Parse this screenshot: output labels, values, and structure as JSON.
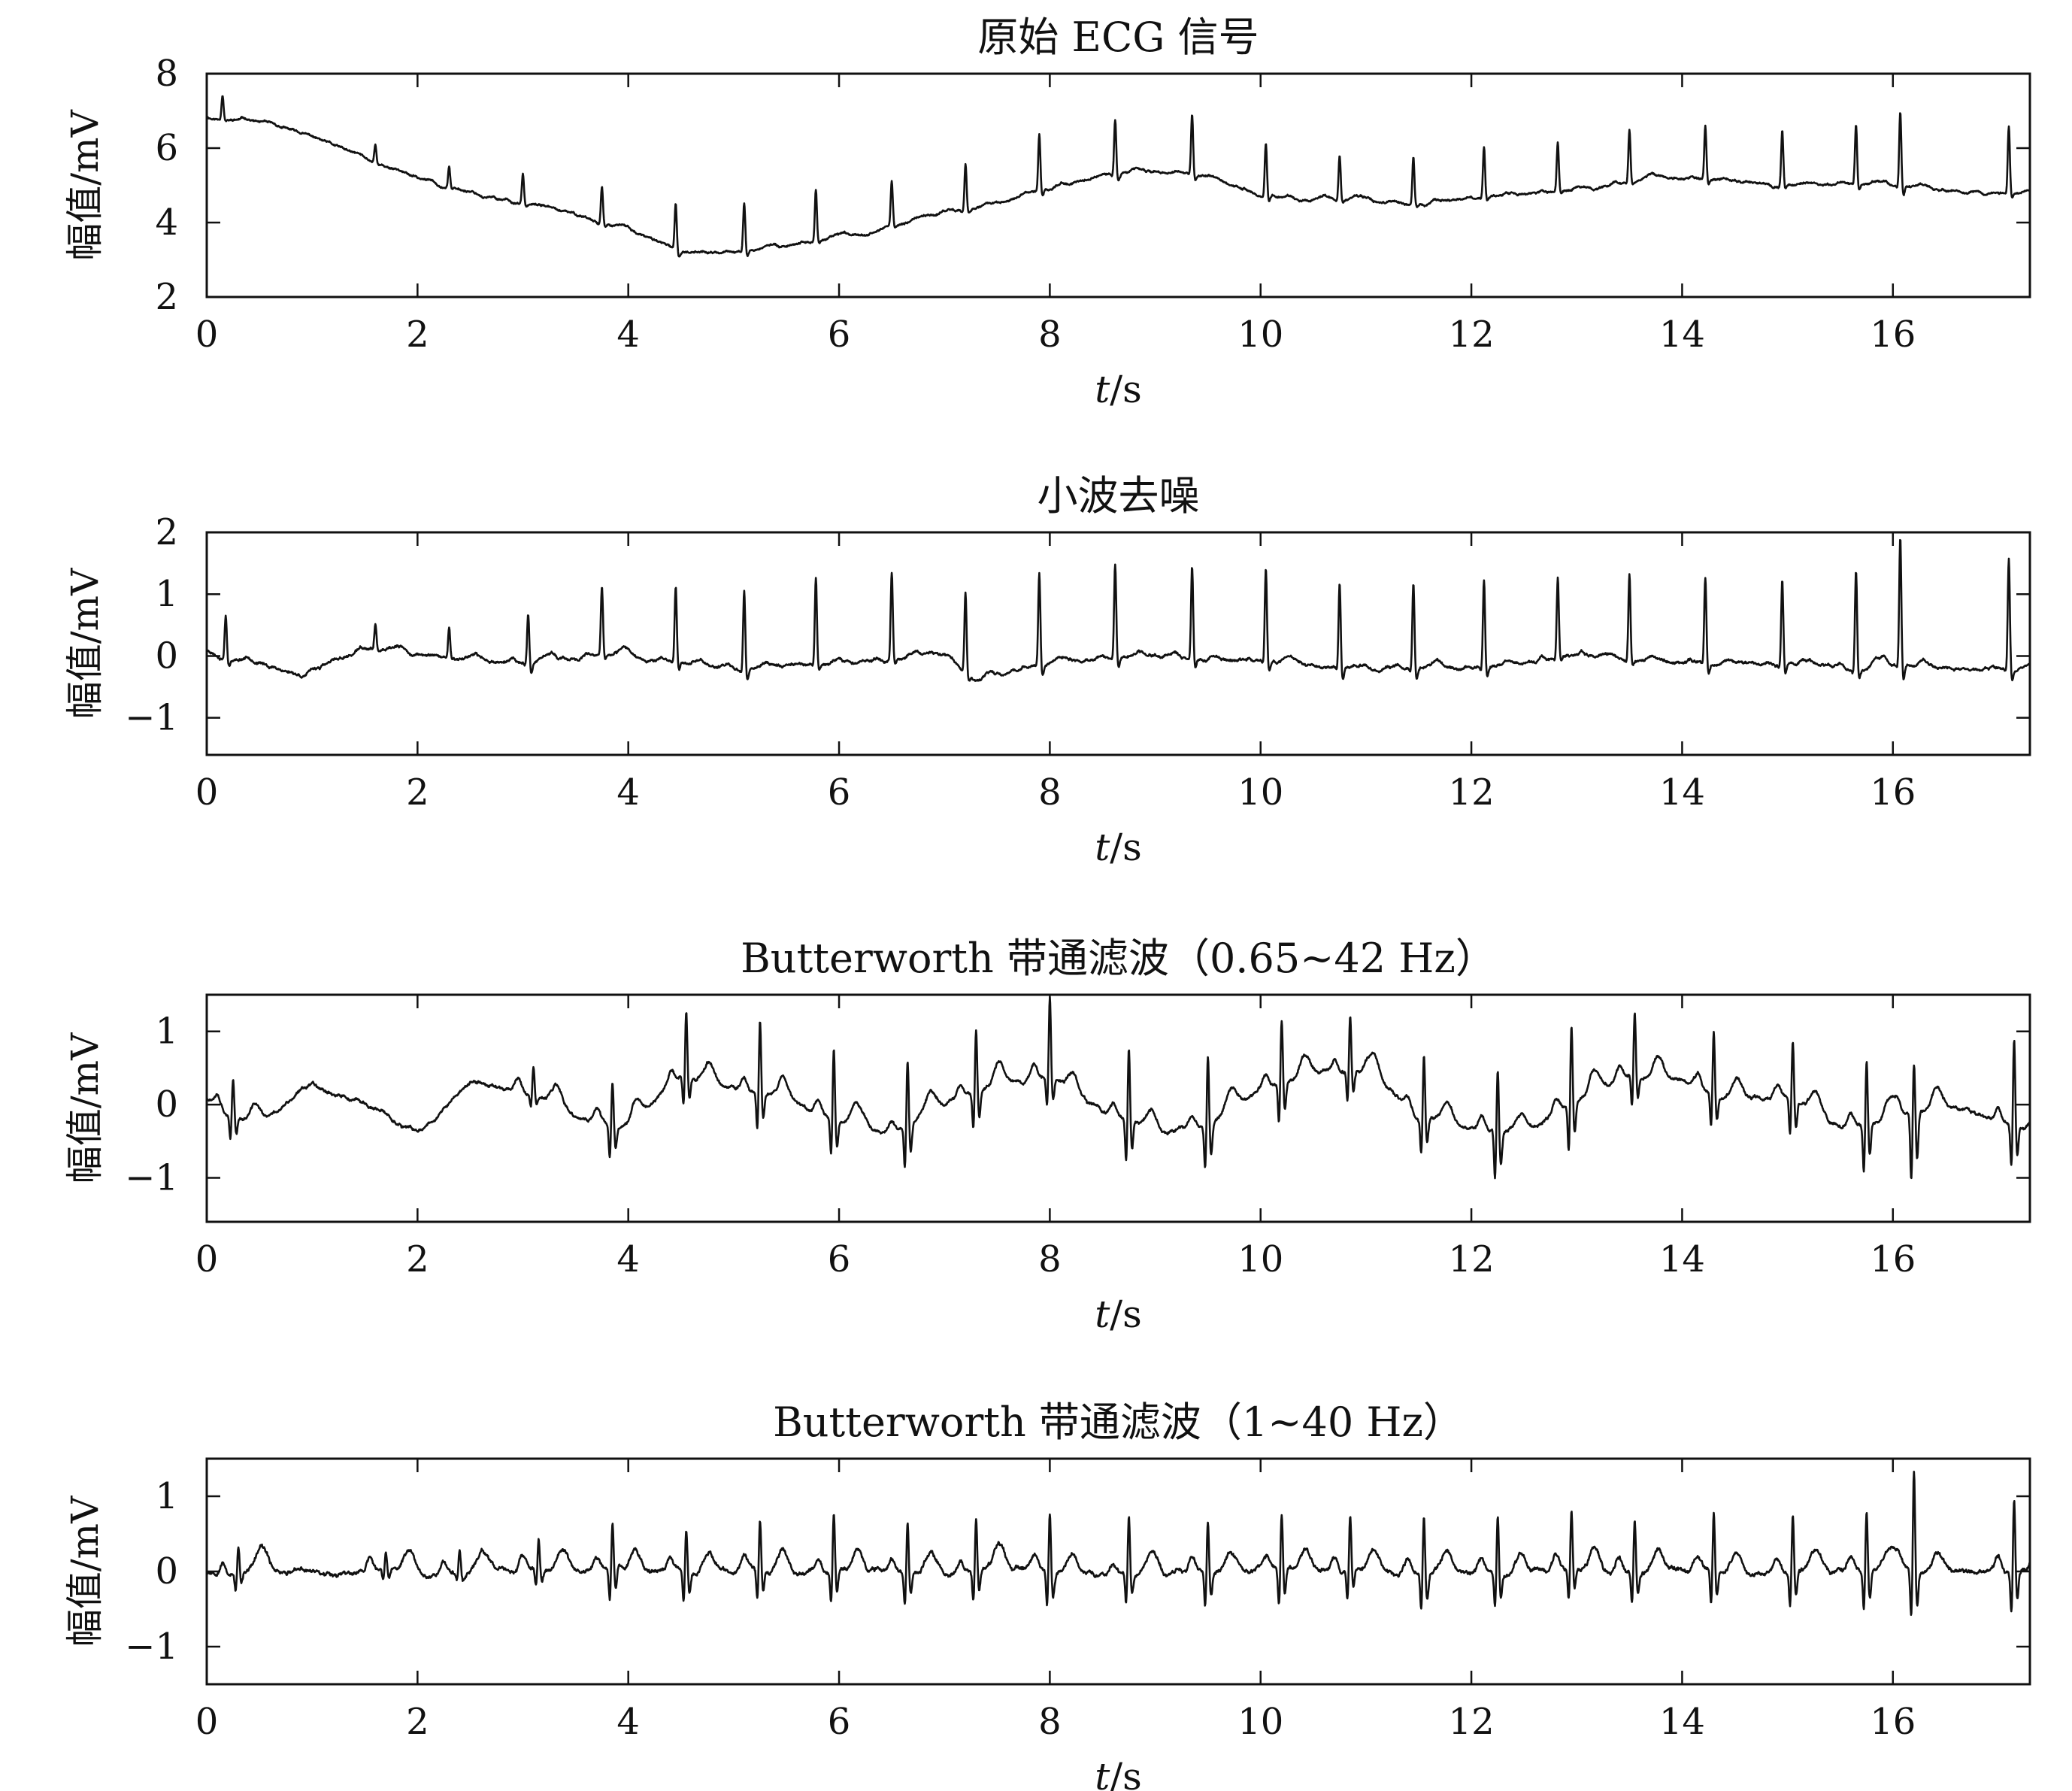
{
  "chart_data": [
    {
      "type": "line",
      "title": "原始 ECG 信号",
      "xlabel_italic": "t",
      "xlabel_rest": "/s",
      "ylabel": "幅值/mV",
      "xlim": [
        0,
        17.3
      ],
      "ylim": [
        2,
        8
      ],
      "xticks": [
        0,
        2,
        4,
        6,
        8,
        10,
        12,
        14,
        16
      ],
      "yticks": [
        2,
        4,
        6,
        8
      ],
      "ytick_labels": [
        "2",
        "4",
        "6",
        "8"
      ],
      "signal": {
        "baseline": [
          [
            0,
            6.8
          ],
          [
            0.5,
            6.7
          ],
          [
            1.0,
            6.3
          ],
          [
            1.5,
            5.7
          ],
          [
            2.0,
            5.2
          ],
          [
            2.5,
            4.8
          ],
          [
            3.0,
            4.5
          ],
          [
            3.5,
            4.2
          ],
          [
            4.0,
            3.8
          ],
          [
            4.5,
            3.2
          ],
          [
            5.0,
            3.2
          ],
          [
            5.5,
            3.4
          ],
          [
            6.0,
            3.6
          ],
          [
            6.5,
            3.9
          ],
          [
            7.0,
            4.3
          ],
          [
            7.5,
            4.5
          ],
          [
            8.0,
            4.9
          ],
          [
            8.5,
            5.3
          ],
          [
            9.0,
            5.4
          ],
          [
            9.5,
            5.2
          ],
          [
            10.0,
            4.8
          ],
          [
            10.5,
            4.6
          ],
          [
            11.0,
            4.6
          ],
          [
            11.5,
            4.5
          ],
          [
            12.0,
            4.6
          ],
          [
            12.5,
            4.8
          ],
          [
            13.0,
            4.9
          ],
          [
            13.5,
            5.1
          ],
          [
            14.0,
            5.2
          ],
          [
            14.5,
            5.1
          ],
          [
            15.0,
            5.0
          ],
          [
            15.5,
            5.0
          ],
          [
            16.0,
            5.0
          ],
          [
            16.5,
            4.9
          ],
          [
            17.3,
            4.8
          ]
        ],
        "beats": [
          0.15,
          1.6,
          2.3,
          3.0,
          3.75,
          4.45,
          5.1,
          5.78,
          6.5,
          7.2,
          7.9,
          8.62,
          9.35,
          10.05,
          10.75,
          11.45,
          12.12,
          12.82,
          13.5,
          14.22,
          14.95,
          15.65,
          16.07,
          17.1
        ],
        "amps": [
          0.7,
          0.5,
          0.6,
          0.8,
          1.0,
          1.2,
          1.3,
          1.4,
          1.2,
          1.3,
          1.5,
          1.5,
          1.6,
          1.4,
          1.2,
          1.3,
          1.4,
          1.3,
          1.4,
          1.4,
          1.5,
          1.6,
          2.0,
          1.8
        ],
        "neg": [
          0,
          0,
          0,
          0.1,
          0.1,
          0.2,
          0.2,
          0.1,
          0.1,
          0.1,
          0.2,
          0.2,
          0.2,
          0.2,
          0.1,
          0.1,
          0.1,
          0.1,
          0.1,
          0.2,
          0.1,
          0.2,
          0.3,
          0.2
        ],
        "neg_frac": 0.8,
        "noise": 0.05,
        "wave_amp": 0.04,
        "seed": 11
      }
    },
    {
      "type": "line",
      "title": "小波去噪",
      "xlabel_italic": "t",
      "xlabel_rest": "/s",
      "ylabel": "幅值/mV",
      "xlim": [
        0,
        17.3
      ],
      "ylim": [
        -1.6,
        2
      ],
      "xticks": [
        0,
        2,
        4,
        6,
        8,
        10,
        12,
        14,
        16
      ],
      "yticks": [
        -1,
        0,
        1,
        2
      ],
      "ytick_labels": [
        "−1",
        "0",
        "1",
        "2"
      ],
      "signal": {
        "baseline": [
          [
            0,
            0.05
          ],
          [
            0.5,
            -0.1
          ],
          [
            0.9,
            -0.3
          ],
          [
            1.5,
            0.1
          ],
          [
            2.0,
            0.0
          ],
          [
            3.0,
            -0.1
          ],
          [
            4.0,
            0.0
          ],
          [
            5.0,
            -0.2
          ],
          [
            6.0,
            -0.1
          ],
          [
            7.0,
            0.0
          ],
          [
            7.3,
            -0.4
          ],
          [
            8.0,
            -0.1
          ],
          [
            9.0,
            0.0
          ],
          [
            10.0,
            -0.1
          ],
          [
            11.0,
            -0.2
          ],
          [
            12.0,
            -0.2
          ],
          [
            13.0,
            0.0
          ],
          [
            14.0,
            -0.1
          ],
          [
            15.0,
            -0.1
          ],
          [
            16.0,
            -0.2
          ],
          [
            17.3,
            -0.2
          ]
        ],
        "beats": [
          0.18,
          1.6,
          2.3,
          3.05,
          3.75,
          4.45,
          5.1,
          5.78,
          6.5,
          7.2,
          7.9,
          8.62,
          9.35,
          10.05,
          10.75,
          11.45,
          12.12,
          12.82,
          13.5,
          14.22,
          14.95,
          15.65,
          16.07,
          17.1
        ],
        "amps": [
          0.7,
          0.4,
          0.5,
          0.8,
          1.1,
          1.2,
          1.3,
          1.4,
          1.4,
          1.3,
          1.5,
          1.5,
          1.5,
          1.5,
          1.4,
          1.4,
          1.4,
          1.3,
          1.4,
          1.4,
          1.4,
          1.6,
          2.1,
          1.8
        ],
        "neg": [
          0.1,
          0,
          0,
          0.2,
          0.1,
          0.2,
          0.2,
          0.1,
          0.1,
          0.1,
          0.2,
          0.2,
          0.2,
          0.2,
          0.2,
          0.2,
          0.2,
          0.1,
          0.1,
          0.2,
          0.2,
          0.2,
          0.3,
          0.2
        ],
        "neg_frac": 0.8,
        "noise": 0.04,
        "wave_amp": 0.05,
        "seed": 23
      }
    },
    {
      "type": "line",
      "title": "Butterworth 带通滤波（0.65~42 Hz）",
      "xlabel_italic": "t",
      "xlabel_rest": "/s",
      "ylabel": "幅值/mV",
      "xlim": [
        0,
        17.3
      ],
      "ylim": [
        -1.6,
        1.5
      ],
      "xticks": [
        0,
        2,
        4,
        6,
        8,
        10,
        12,
        14,
        16
      ],
      "yticks": [
        -1,
        0,
        1
      ],
      "ytick_labels": [
        "−1",
        "0",
        "1"
      ],
      "signal": {
        "baseline": [
          [
            0,
            0.1
          ],
          [
            0.5,
            -0.3
          ],
          [
            1.0,
            0.3
          ],
          [
            1.5,
            0.0
          ],
          [
            2.0,
            -0.4
          ],
          [
            2.5,
            0.3
          ],
          [
            3.0,
            0.2
          ],
          [
            3.5,
            -0.2
          ],
          [
            4.0,
            -0.3
          ],
          [
            4.5,
            0.4
          ],
          [
            5.0,
            0.2
          ],
          [
            5.5,
            0.1
          ],
          [
            6.0,
            -0.2
          ],
          [
            6.5,
            -0.4
          ],
          [
            7.0,
            0.0
          ],
          [
            7.5,
            0.3
          ],
          [
            8.0,
            0.4
          ],
          [
            8.5,
            -0.1
          ],
          [
            9.0,
            -0.4
          ],
          [
            9.5,
            -0.3
          ],
          [
            10.0,
            0.2
          ],
          [
            10.5,
            0.4
          ],
          [
            11.0,
            0.5
          ],
          [
            11.5,
            -0.2
          ],
          [
            12.0,
            -0.3
          ],
          [
            12.5,
            -0.4
          ],
          [
            13.0,
            0.1
          ],
          [
            13.5,
            0.4
          ],
          [
            14.0,
            0.3
          ],
          [
            14.5,
            0.1
          ],
          [
            15.0,
            0.1
          ],
          [
            15.5,
            -0.3
          ],
          [
            16.0,
            -0.2
          ],
          [
            16.5,
            0.0
          ],
          [
            17.3,
            -0.3
          ]
        ],
        "beats": [
          0.25,
          3.1,
          3.85,
          4.55,
          5.25,
          5.95,
          6.65,
          7.3,
          8.0,
          8.75,
          9.5,
          10.2,
          10.85,
          11.55,
          12.25,
          12.95,
          13.55,
          14.3,
          15.05,
          15.75,
          16.2,
          17.15
        ],
        "amps": [
          0.5,
          0.4,
          0.6,
          0.9,
          1.0,
          1.0,
          0.9,
          0.9,
          1.1,
          1.0,
          1.0,
          0.9,
          0.8,
          0.9,
          0.9,
          1.1,
          0.9,
          0.9,
          0.8,
          0.9,
          0.7,
          1.2
        ],
        "neg": [
          0.6,
          0.3,
          0.8,
          0.7,
          0.9,
          0.9,
          1.0,
          0.8,
          0.7,
          1.0,
          1.0,
          0.9,
          0.7,
          0.8,
          1.1,
          1.1,
          0.7,
          0.8,
          0.9,
          1.1,
          1.6,
          1.0
        ],
        "neg_frac": 0.4,
        "noise": 0.04,
        "wave_amp": 0.18,
        "seed": 37
      }
    },
    {
      "type": "line",
      "title": "Butterworth 带通滤波（1~40 Hz）",
      "xlabel_italic": "t",
      "xlabel_rest": "/s",
      "ylabel": "幅值/mV",
      "xlim": [
        0,
        17.3
      ],
      "ylim": [
        -1.5,
        1.5
      ],
      "xticks": [
        0,
        2,
        4,
        6,
        8,
        10,
        12,
        14,
        16
      ],
      "yticks": [
        -1,
        0,
        1
      ],
      "ytick_labels": [
        "−1",
        "0",
        "1"
      ],
      "signal": {
        "baseline": [
          [
            0,
            0.0
          ],
          [
            17.3,
            0.0
          ]
        ],
        "beats": [
          0.3,
          1.7,
          2.4,
          3.15,
          3.85,
          4.55,
          5.25,
          5.95,
          6.65,
          7.3,
          8.0,
          8.75,
          9.5,
          10.2,
          10.85,
          11.55,
          12.25,
          12.95,
          13.55,
          14.3,
          15.05,
          15.75,
          16.2,
          17.15
        ],
        "amps": [
          0.35,
          0.25,
          0.3,
          0.4,
          0.6,
          0.6,
          0.7,
          0.8,
          0.7,
          0.7,
          0.8,
          0.8,
          0.7,
          0.8,
          0.7,
          0.8,
          0.8,
          0.8,
          0.7,
          0.8,
          0.8,
          0.8,
          1.4,
          1.0
        ],
        "neg": [
          0.4,
          0.2,
          0.2,
          0.4,
          0.7,
          0.7,
          0.7,
          0.7,
          0.7,
          0.7,
          0.8,
          0.7,
          0.8,
          0.8,
          0.7,
          0.8,
          0.8,
          0.7,
          0.7,
          0.8,
          0.8,
          0.9,
          1.1,
          0.9
        ],
        "neg_frac": 0.4,
        "noise": 0.05,
        "wave_amp": 0.18,
        "seed": 53
      }
    }
  ]
}
